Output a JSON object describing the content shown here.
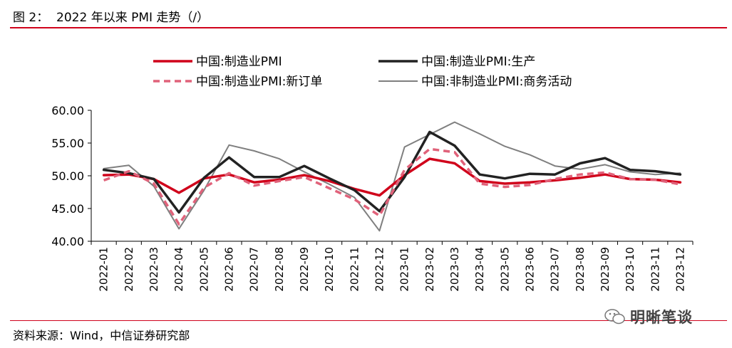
{
  "title": "图 2：  2022 年以来 PMI 走势（/）",
  "source": "资料来源：Wind，中信证券研究部",
  "watermark": "明晰笔谈",
  "chart_data": {
    "type": "line",
    "categories": [
      "2022-01",
      "2022-02",
      "2022-03",
      "2022-04",
      "2022-05",
      "2022-06",
      "2022-07",
      "2022-08",
      "2022-09",
      "2022-10",
      "2022-11",
      "2022-12",
      "2023-01",
      "2023-02",
      "2023-03",
      "2023-04",
      "2023-05",
      "2023-06",
      "2023-07",
      "2023-08",
      "2023-09",
      "2023-10",
      "2023-11",
      "2023-12"
    ],
    "ylim": [
      40,
      60
    ],
    "yticks": [
      "40.00",
      "45.00",
      "50.00",
      "55.00",
      "60.00"
    ],
    "legend_position": "top",
    "series": [
      {
        "name": "中国:制造业PMI",
        "color": "#d0021b",
        "style": "solid",
        "width": 3.5,
        "values": [
          50.1,
          50.2,
          49.5,
          47.4,
          49.6,
          50.2,
          49.0,
          49.4,
          50.1,
          49.2,
          48.0,
          47.0,
          50.1,
          52.6,
          51.9,
          49.2,
          48.8,
          49.0,
          49.3,
          49.7,
          50.2,
          49.5,
          49.4,
          49.0
        ]
      },
      {
        "name": "中国:制造业PMI:生产",
        "color": "#222222",
        "style": "solid",
        "width": 3.5,
        "values": [
          50.9,
          50.4,
          49.5,
          44.4,
          49.7,
          52.8,
          49.8,
          49.8,
          51.5,
          49.6,
          47.8,
          44.6,
          49.8,
          56.7,
          54.6,
          50.2,
          49.6,
          50.3,
          50.2,
          51.9,
          52.7,
          50.9,
          50.7,
          50.2
        ]
      },
      {
        "name": "中国:制造业PMI:新订单",
        "color": "#e0627a",
        "style": "dashed",
        "width": 3.5,
        "values": [
          49.3,
          50.7,
          48.8,
          42.6,
          48.2,
          50.4,
          48.5,
          49.2,
          49.8,
          48.1,
          46.4,
          43.9,
          50.9,
          54.1,
          53.6,
          48.8,
          48.3,
          48.6,
          49.5,
          50.2,
          50.5,
          49.5,
          49.4,
          48.7
        ]
      },
      {
        "name": "中国:非制造业PMI:商务活动",
        "color": "#7f7f7f",
        "style": "solid",
        "width": 2,
        "values": [
          51.1,
          51.6,
          48.4,
          41.9,
          47.8,
          54.7,
          53.8,
          52.6,
          50.6,
          48.7,
          46.7,
          41.6,
          54.4,
          56.3,
          58.2,
          56.4,
          54.5,
          53.2,
          51.5,
          51.0,
          51.7,
          50.6,
          50.2,
          50.4
        ]
      }
    ]
  }
}
